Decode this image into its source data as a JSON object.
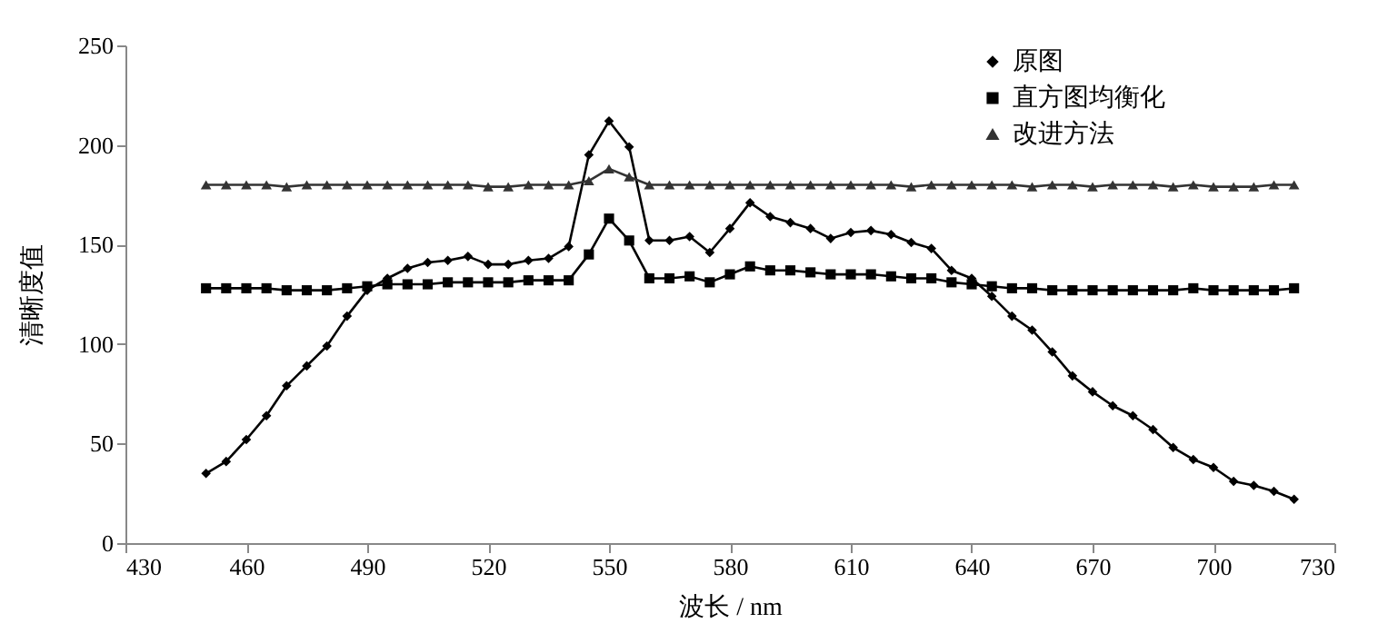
{
  "chart_data": {
    "type": "line",
    "xlabel": "波长 / nm",
    "ylabel": "清晰度值",
    "x": [
      450,
      455,
      460,
      465,
      470,
      475,
      480,
      485,
      490,
      495,
      500,
      505,
      510,
      515,
      520,
      525,
      530,
      535,
      540,
      545,
      550,
      555,
      560,
      565,
      570,
      575,
      580,
      585,
      590,
      595,
      600,
      605,
      610,
      615,
      620,
      625,
      630,
      635,
      640,
      645,
      650,
      655,
      660,
      665,
      670,
      675,
      680,
      685,
      690,
      695,
      700,
      705,
      710,
      715,
      720
    ],
    "series": [
      {
        "name": "原图",
        "color": "#000000",
        "marker": "diamond",
        "values": [
          35,
          41,
          52,
          64,
          79,
          89,
          99,
          114,
          127,
          133,
          138,
          141,
          142,
          144,
          140,
          140,
          142,
          143,
          149,
          195,
          212,
          199,
          152,
          152,
          154,
          146,
          158,
          171,
          164,
          161,
          158,
          153,
          156,
          157,
          155,
          151,
          148,
          137,
          133,
          124,
          114,
          107,
          96,
          84,
          76,
          69,
          64,
          57,
          48,
          42,
          38,
          31,
          29,
          26,
          22
        ]
      },
      {
        "name": "直方图均衡化",
        "color": "#000000",
        "marker": "square",
        "values": [
          128,
          128,
          128,
          128,
          127,
          127,
          127,
          128,
          129,
          130,
          130,
          130,
          131,
          131,
          131,
          131,
          132,
          132,
          132,
          145,
          163,
          152,
          133,
          133,
          134,
          131,
          135,
          139,
          137,
          137,
          136,
          135,
          135,
          135,
          134,
          133,
          133,
          131,
          130,
          129,
          128,
          128,
          127,
          127,
          127,
          127,
          127,
          127,
          127,
          128,
          127,
          127,
          127,
          127,
          128
        ]
      },
      {
        "name": "改进方法",
        "color": "#333333",
        "marker": "triangle",
        "values": [
          180,
          180,
          180,
          180,
          179,
          180,
          180,
          180,
          180,
          180,
          180,
          180,
          180,
          180,
          179,
          179,
          180,
          180,
          180,
          182,
          188,
          184,
          180,
          180,
          180,
          180,
          180,
          180,
          180,
          180,
          180,
          180,
          180,
          180,
          180,
          179,
          180,
          180,
          180,
          180,
          180,
          179,
          180,
          180,
          179,
          180,
          180,
          180,
          179,
          180,
          179,
          179,
          179,
          180,
          180
        ]
      }
    ],
    "xlim": [
      430,
      730
    ],
    "xticks": [
      430,
      460,
      490,
      520,
      550,
      580,
      610,
      640,
      670,
      700,
      730
    ],
    "ylim": [
      0,
      250
    ],
    "yticks": [
      0,
      50,
      100,
      150,
      200,
      250
    ],
    "grid": false,
    "legend": "top right",
    "line_style": "solid"
  }
}
